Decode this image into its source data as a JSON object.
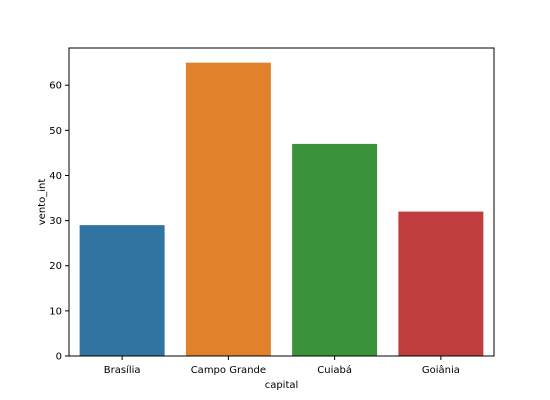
{
  "chart_data": {
    "type": "bar",
    "title": "",
    "xlabel": "capital",
    "ylabel": "vento_int",
    "categories": [
      "Brasília",
      "Campo Grande",
      "Cuiabá",
      "Goiânia"
    ],
    "values": [
      29,
      65,
      47,
      32
    ],
    "colors": [
      "#3274a1",
      "#e1812c",
      "#3a923a",
      "#c03d3e"
    ],
    "ylim": [
      0,
      68.25
    ],
    "yticks": [
      0,
      10,
      20,
      30,
      40,
      50,
      60
    ],
    "grid": false,
    "legend": "none"
  }
}
